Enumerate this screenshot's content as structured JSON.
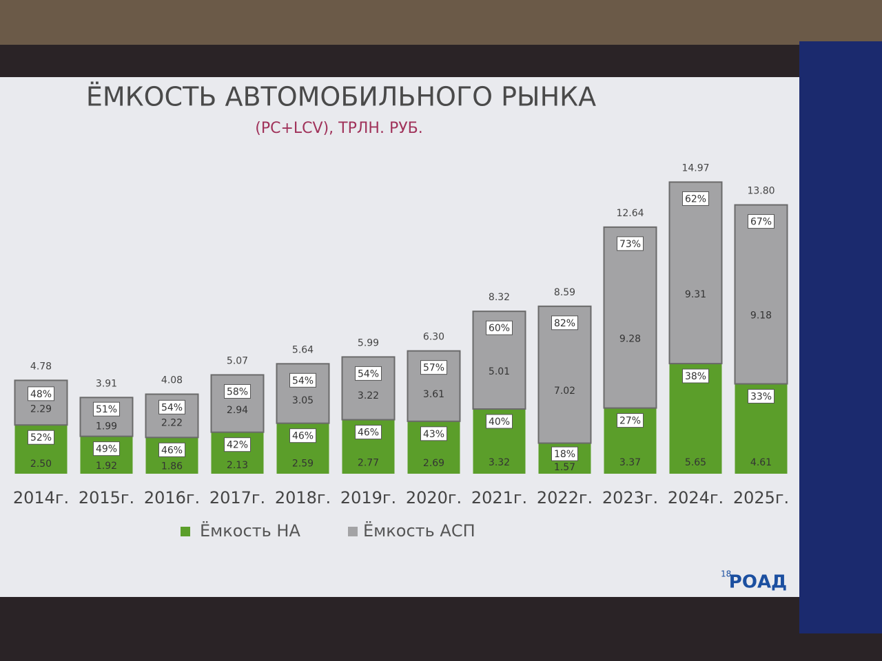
{
  "chart_data": {
    "type": "stacked-bar",
    "title": "ЁМКОСТЬ АВТОМОБИЛЬНОГО РЫНКА",
    "subtitle": "(PC+LCV), ТРЛН. РУБ.",
    "categories": [
      "2014г.",
      "2015г.",
      "2016г.",
      "2017г.",
      "2018г.",
      "2019г.",
      "2020г.",
      "2021г.",
      "2022г.",
      "2023г.",
      "2024г.",
      "2025г."
    ],
    "series": [
      {
        "name": "Ёмкость НА",
        "color": "#5b9e2a",
        "values": [
          2.5,
          1.92,
          1.86,
          2.13,
          2.59,
          2.77,
          2.69,
          3.32,
          1.57,
          3.37,
          5.65,
          4.61
        ],
        "value_labels": [
          "2.50",
          "1.92",
          "1.86",
          "2.13",
          "2.59",
          "2.77",
          "2.69",
          "3.32",
          "1.57",
          "3.37",
          "5.65",
          "4.61"
        ],
        "percent_labels": [
          "52%",
          "49%",
          "46%",
          "42%",
          "46%",
          "46%",
          "43%",
          "40%",
          "18%",
          "27%",
          "38%",
          "33%"
        ]
      },
      {
        "name": "Ёмкость АСП",
        "color": "#a3a3a5",
        "values": [
          2.29,
          1.99,
          2.22,
          2.94,
          3.05,
          3.22,
          3.61,
          5.01,
          7.02,
          9.28,
          9.31,
          9.18
        ],
        "percent_labels": [
          "48%",
          "51%",
          "54%",
          "58%",
          "54%",
          "54%",
          "57%",
          "60%",
          "82%",
          "73%",
          "62%",
          "67%"
        ]
      }
    ],
    "total_labels": [
      "4.78",
      "3.91",
      "4.08",
      "5.07",
      "5.64",
      "5.99",
      "6.30",
      "8.32",
      "8.59",
      "12.64",
      "14.97",
      "13.80"
    ],
    "ylim": [
      0,
      16
    ],
    "page_number": "18",
    "logo": "РОАД"
  }
}
